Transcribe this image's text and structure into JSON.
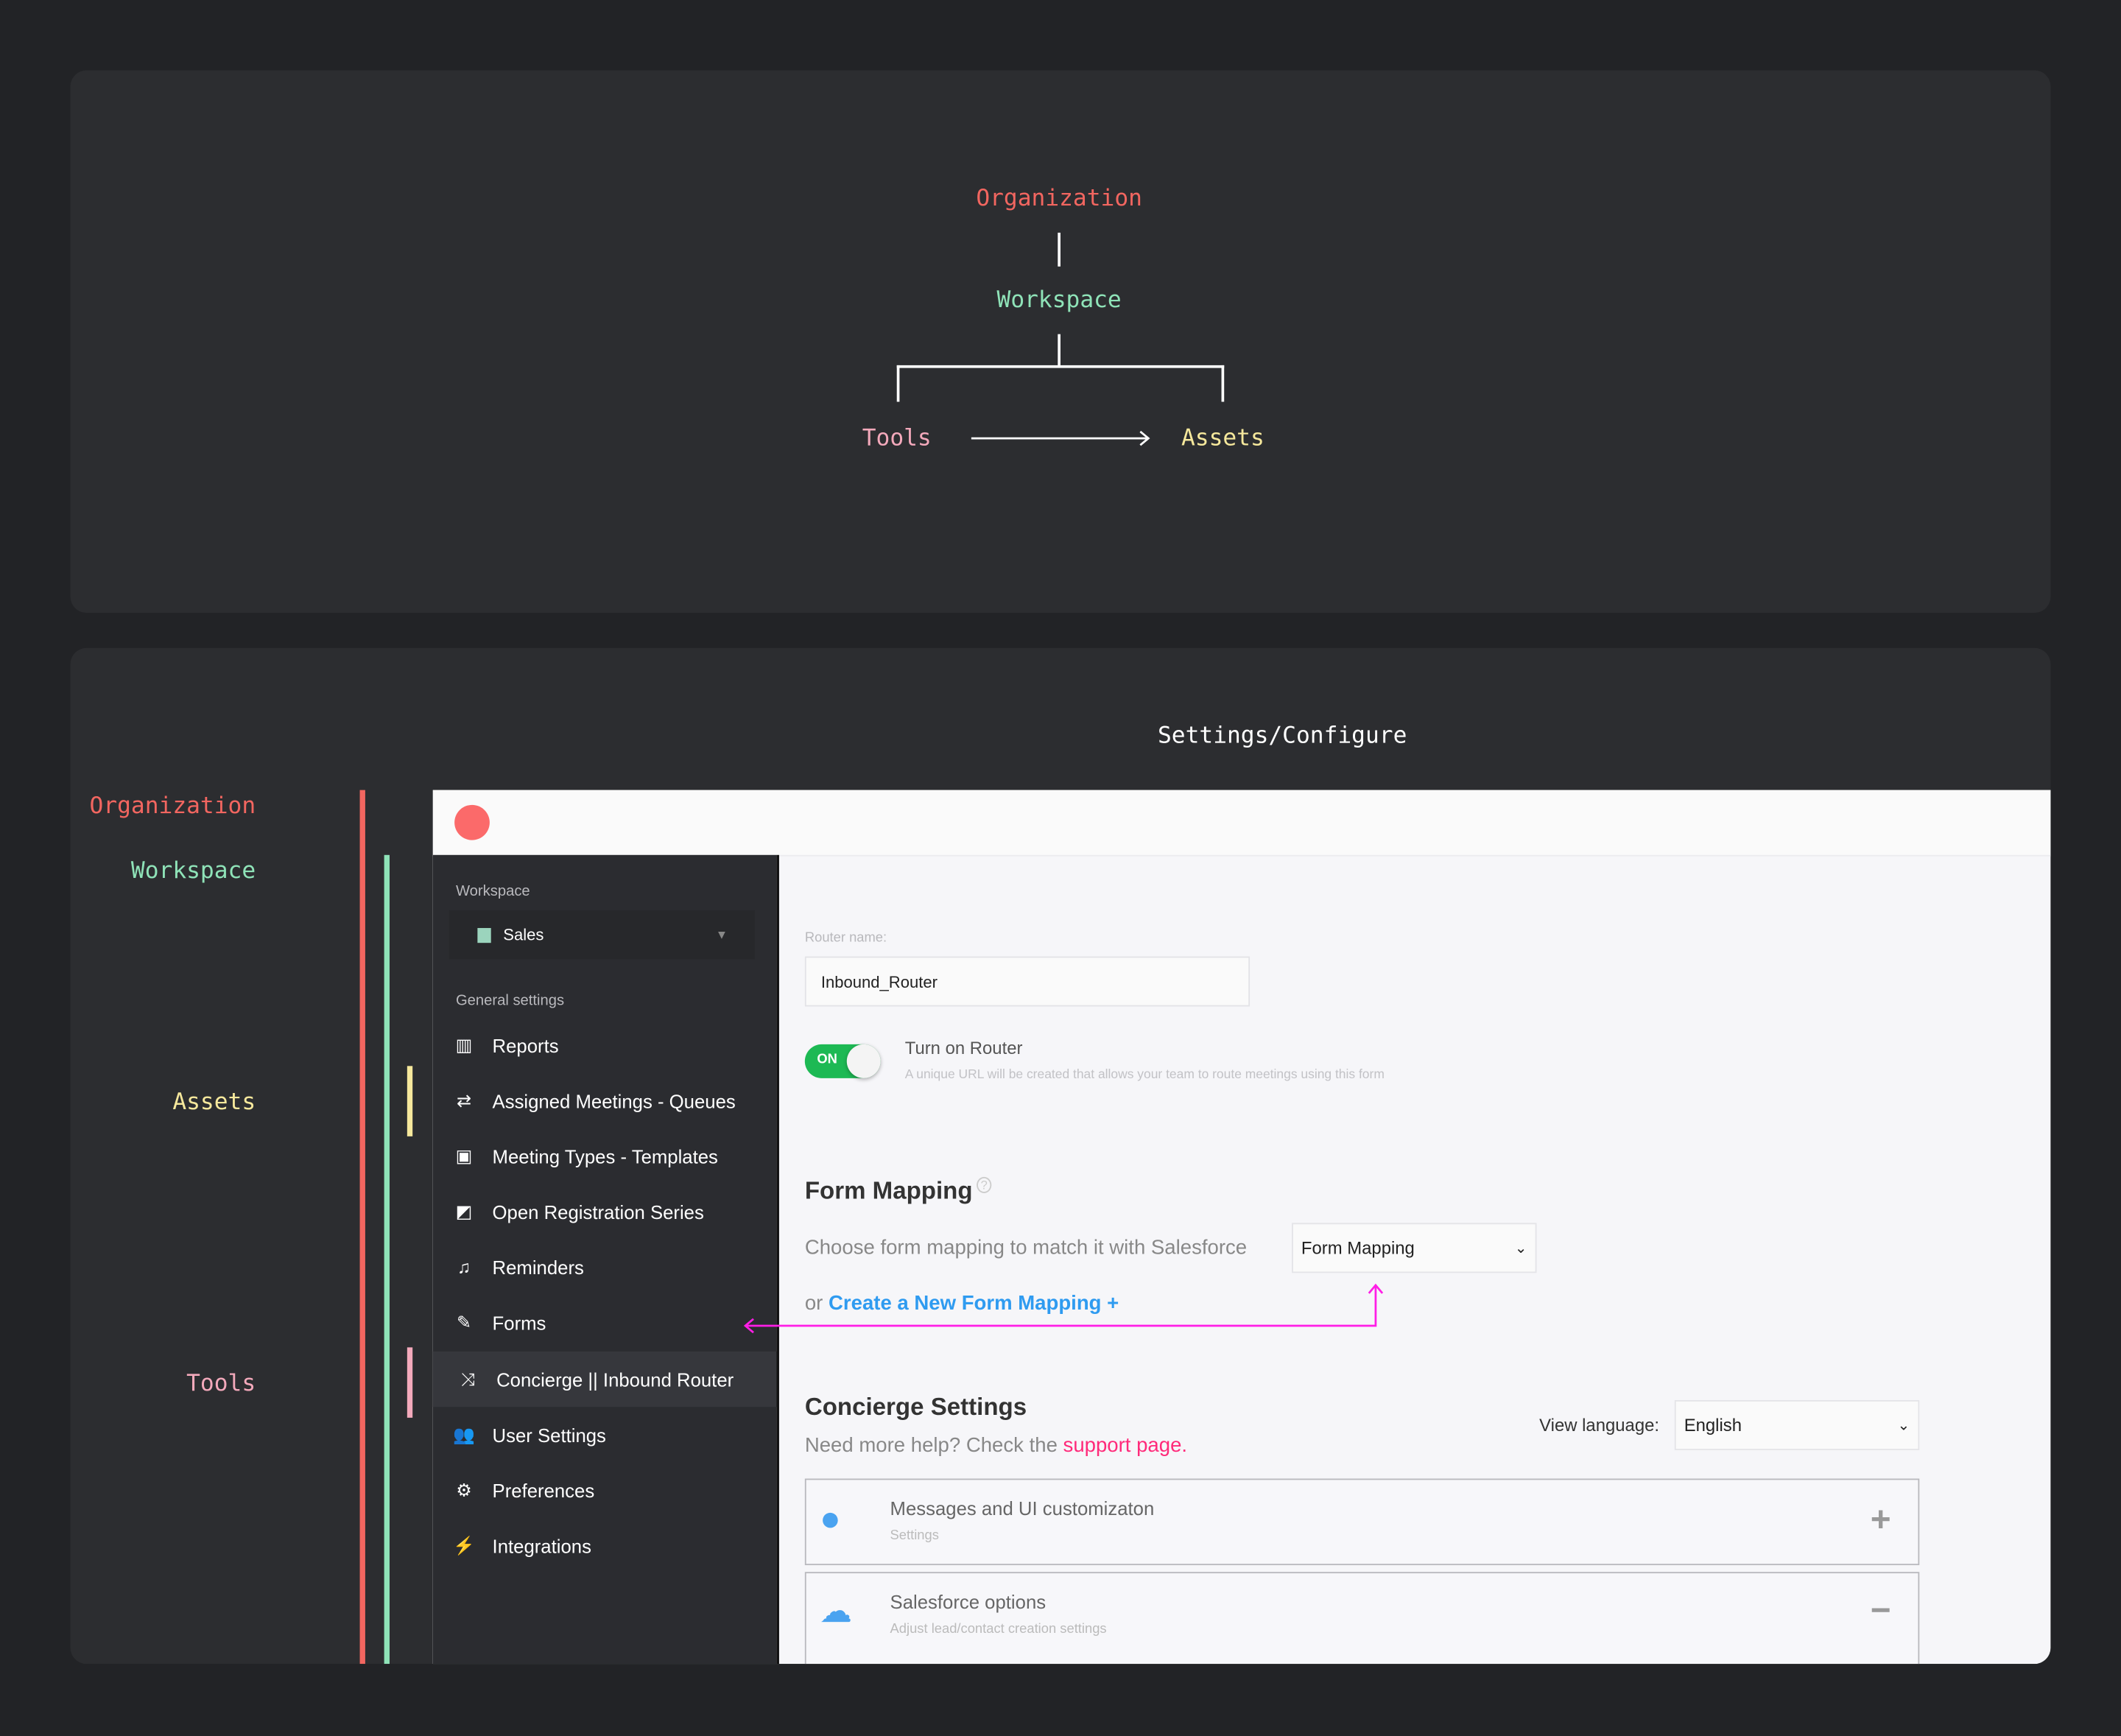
{
  "diagram": {
    "organization": "Organization",
    "workspace": "Workspace",
    "tools": "Tools",
    "assets": "Assets"
  },
  "mapping": {
    "title": "Settings/Configure",
    "labels": {
      "organization": "Organization",
      "workspace": "Workspace",
      "assets": "Assets",
      "tools": "Tools"
    }
  },
  "colors": {
    "organization": "#f26660",
    "workspace": "#8fe3b8",
    "assets": "#f6e89c",
    "tools": "#f3a9bb",
    "annotation_arrow": "#ff1ee6",
    "link": "#2f9bf0",
    "support_link": "#ff2a7a",
    "toggle_on": "#1db954"
  },
  "app": {
    "sidebar": {
      "workspace_label": "Workspace",
      "workspace_value": "Sales",
      "section_label": "General settings",
      "items": [
        {
          "label": "Reports",
          "icon": "bar-chart-icon"
        },
        {
          "label": "Assigned Meetings - Queues",
          "icon": "swap-arrows-icon"
        },
        {
          "label": "Meeting Types - Templates",
          "icon": "calendar-plus-icon"
        },
        {
          "label": "Open Registration Series",
          "icon": "external-link-icon"
        },
        {
          "label": "Reminders",
          "icon": "bell-icon"
        },
        {
          "label": "Forms",
          "icon": "edit-icon"
        },
        {
          "label": "Concierge || Inbound Router",
          "icon": "shuffle-icon",
          "active": true
        },
        {
          "label": "User Settings",
          "icon": "users-icon"
        },
        {
          "label": "Preferences",
          "icon": "gear-icon"
        },
        {
          "label": "Integrations",
          "icon": "plug-icon"
        }
      ]
    },
    "main": {
      "router_name_label": "Router name:",
      "router_name_value": "Inbound_Router",
      "toggle_state": "ON",
      "toggle_label": "Turn on Router",
      "toggle_help": "A unique URL will be created that allows your team to route meetings using this form",
      "form_mapping_title": "Form Mapping",
      "form_mapping_help_icon": "?",
      "form_mapping_desc": "Choose form mapping to match it with Salesforce",
      "form_mapping_select": "Form Mapping",
      "or_text": "or",
      "create_link": "Create a New Form Mapping +",
      "concierge_title": "Concierge Settings",
      "help_text": "Need more help? Check the",
      "support_link": "support page.",
      "view_language_label": "View language:",
      "view_language_value": "English",
      "cards": [
        {
          "title": "Messages and UI customizaton",
          "subtitle": "Settings",
          "action": "+"
        },
        {
          "title": "Salesforce options",
          "subtitle": "Adjust lead/contact creation settings",
          "action": "−"
        }
      ]
    }
  }
}
